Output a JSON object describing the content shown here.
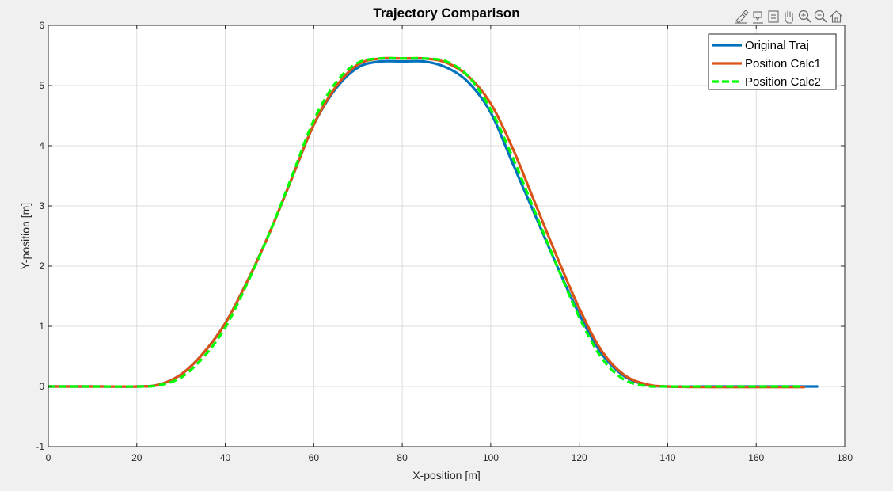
{
  "toolbar": {
    "buttons": [
      {
        "icon": "brush-icon"
      },
      {
        "icon": "data-tips-icon"
      },
      {
        "icon": "restore-view-icon"
      },
      {
        "icon": "pan-hand-icon"
      },
      {
        "icon": "zoom-in-icon"
      },
      {
        "icon": "zoom-out-icon"
      },
      {
        "icon": "home-icon"
      }
    ]
  },
  "chart_data": {
    "type": "line",
    "title": "Trajectory Comparison",
    "xlabel": "X-position [m]",
    "ylabel": "Y-position [m]",
    "xlim": [
      0,
      180
    ],
    "ylim": [
      -1,
      6
    ],
    "xticks": [
      0,
      20,
      40,
      60,
      80,
      100,
      120,
      140,
      160,
      180
    ],
    "yticks": [
      -1,
      0,
      1,
      2,
      3,
      4,
      5,
      6
    ],
    "grid": true,
    "legend_position": "top-right",
    "series": [
      {
        "name": "Original Traj",
        "color": "#0072BD",
        "style": "solid",
        "x": [
          0,
          10,
          20,
          25,
          30,
          35,
          40,
          45,
          50,
          55,
          60,
          65,
          70,
          75,
          80,
          85,
          90,
          95,
          100,
          105,
          110,
          115,
          120,
          125,
          130,
          135,
          140,
          150,
          160,
          170,
          174
        ],
        "y": [
          0,
          0,
          0,
          0.03,
          0.2,
          0.55,
          1.05,
          1.75,
          2.55,
          3.45,
          4.35,
          4.95,
          5.3,
          5.4,
          5.4,
          5.4,
          5.3,
          5.05,
          4.55,
          3.7,
          2.85,
          2.0,
          1.2,
          0.55,
          0.18,
          0.03,
          0,
          0,
          0,
          0,
          0
        ]
      },
      {
        "name": "Position Calc1",
        "color": "#D95319",
        "style": "solid",
        "x": [
          0,
          10,
          20,
          25,
          30,
          35,
          40,
          45,
          50,
          55,
          60,
          65,
          70,
          75,
          80,
          85,
          90,
          95,
          100,
          105,
          110,
          115,
          120,
          125,
          130,
          135,
          140,
          150,
          160,
          171
        ],
        "y": [
          0,
          0,
          0,
          0.03,
          0.2,
          0.55,
          1.05,
          1.75,
          2.55,
          3.45,
          4.35,
          4.98,
          5.35,
          5.45,
          5.45,
          5.45,
          5.38,
          5.15,
          4.7,
          3.95,
          3.05,
          2.15,
          1.3,
          0.6,
          0.2,
          0.04,
          0,
          -0.01,
          -0.01,
          -0.01
        ]
      },
      {
        "name": "Position Calc2",
        "color": "#00FF00",
        "style": "dashed",
        "x": [
          0,
          10,
          20,
          25,
          30,
          35,
          40,
          45,
          50,
          55,
          60,
          65,
          70,
          75,
          80,
          85,
          90,
          95,
          100,
          105,
          110,
          115,
          120,
          125,
          130,
          135,
          140,
          150,
          160,
          170
        ],
        "y": [
          0,
          0,
          0,
          0.02,
          0.15,
          0.48,
          0.98,
          1.72,
          2.55,
          3.48,
          4.42,
          5.05,
          5.38,
          5.45,
          5.45,
          5.45,
          5.4,
          5.15,
          4.6,
          3.8,
          2.9,
          2.0,
          1.15,
          0.48,
          0.12,
          0.01,
          0,
          0,
          0,
          0
        ]
      }
    ]
  }
}
